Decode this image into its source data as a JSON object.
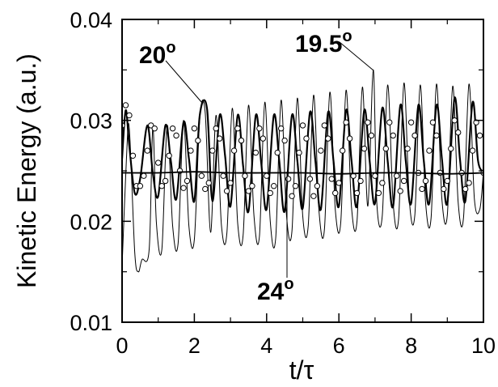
{
  "chart_data": {
    "type": "line",
    "xlabel": "t/τ",
    "ylabel": "Kinetic Energy (a.u.)",
    "xlim": [
      0,
      10
    ],
    "ylim": [
      0.01,
      0.04
    ],
    "x_ticks": [
      "0",
      "2",
      "4",
      "6",
      "8",
      "10"
    ],
    "y_ticks": [
      "0.01",
      "0.02",
      "0.03",
      "0.04"
    ],
    "grid": false,
    "legend": "none",
    "annotations": [
      {
        "label": "20",
        "unit": "o",
        "points_to_x": 2.32,
        "points_to_y": 0.0315
      },
      {
        "label": "19.5",
        "unit": "o",
        "points_to_x": 7.0,
        "points_to_y": 0.0351
      },
      {
        "label": "24",
        "unit": "o",
        "points_to_x": 4.6,
        "points_to_y": 0.0248
      }
    ],
    "series": [
      {
        "style": "line-thin",
        "x": [
          0,
          0.12,
          0.2,
          0.35,
          0.45,
          0.55,
          0.75,
          0.85,
          0.95,
          1.1,
          1.25,
          1.4,
          1.55,
          1.7,
          1.85,
          2.0,
          2.15,
          2.3,
          2.45,
          2.6,
          2.75,
          2.9,
          3.05,
          3.2,
          3.35,
          3.5,
          3.65,
          3.8,
          3.95,
          4.1,
          4.25,
          4.4,
          4.55,
          4.7,
          4.85,
          5.0,
          5.15,
          5.3,
          5.45,
          5.6,
          5.75,
          5.9,
          6.05,
          6.2,
          6.35,
          6.5,
          6.65,
          6.8,
          6.95,
          7.05,
          7.2,
          7.35,
          7.5,
          7.65,
          7.8,
          7.95,
          8.1,
          8.25,
          8.4,
          8.55,
          8.7,
          8.85,
          9.0,
          9.15,
          9.3,
          9.45,
          9.6,
          9.75,
          9.9,
          10
        ],
        "y": [
          0.0155,
          0.0262,
          0.0292,
          0.017,
          0.015,
          0.0162,
          0.0172,
          0.0293,
          0.0198,
          0.0172,
          0.0295,
          0.0195,
          0.0178,
          0.03,
          0.0195,
          0.0182,
          0.0302,
          0.0308,
          0.0189,
          0.0305,
          0.0196,
          0.0188,
          0.0312,
          0.0198,
          0.0186,
          0.0315,
          0.0205,
          0.0185,
          0.0318,
          0.02,
          0.0183,
          0.032,
          0.0206,
          0.019,
          0.0322,
          0.0205,
          0.0195,
          0.0325,
          0.021,
          0.0192,
          0.0328,
          0.0212,
          0.0198,
          0.033,
          0.0214,
          0.02,
          0.0333,
          0.0215,
          0.035,
          0.0218,
          0.0205,
          0.0335,
          0.0218,
          0.0202,
          0.0337,
          0.022,
          0.0206,
          0.0335,
          0.0218,
          0.0203,
          0.0336,
          0.0222,
          0.0206,
          0.0334,
          0.0219,
          0.0204,
          0.0336,
          0.0222,
          0.0212,
          0.025
        ]
      },
      {
        "style": "line-medium",
        "x": [
          0,
          0.1,
          0.2,
          0.35,
          0.5,
          0.7,
          0.85,
          1.0,
          1.2,
          1.35,
          1.5,
          1.7,
          1.85,
          2.0,
          2.15,
          2.35,
          2.5,
          2.7,
          2.85,
          3.0,
          3.2,
          3.35,
          3.5,
          3.7,
          3.85,
          4.0,
          4.2,
          4.35,
          4.5,
          4.7,
          4.85,
          5.0,
          5.2,
          5.35,
          5.5,
          5.7,
          5.85,
          6.0,
          6.2,
          6.35,
          6.5,
          6.7,
          6.85,
          7.0,
          7.2,
          7.35,
          7.5,
          7.7,
          7.85,
          8.0,
          8.2,
          8.35,
          8.5,
          8.7,
          8.85,
          9.0,
          9.2,
          9.35,
          9.5,
          9.7,
          9.85,
          10
        ],
        "y": [
          0.0262,
          0.031,
          0.0275,
          0.0228,
          0.0242,
          0.0295,
          0.0248,
          0.0225,
          0.0295,
          0.026,
          0.0222,
          0.0298,
          0.0262,
          0.022,
          0.0305,
          0.0312,
          0.022,
          0.0305,
          0.0265,
          0.0215,
          0.0305,
          0.0255,
          0.021,
          0.0305,
          0.0258,
          0.0212,
          0.0305,
          0.026,
          0.021,
          0.0305,
          0.026,
          0.0213,
          0.0308,
          0.026,
          0.0212,
          0.0308,
          0.026,
          0.0215,
          0.031,
          0.026,
          0.0215,
          0.031,
          0.026,
          0.0218,
          0.0312,
          0.026,
          0.0215,
          0.0315,
          0.026,
          0.0218,
          0.0315,
          0.026,
          0.0218,
          0.0315,
          0.0262,
          0.0218,
          0.0322,
          0.0262,
          0.022,
          0.0318,
          0.026,
          0.0249
        ]
      },
      {
        "style": "circles",
        "x": [
          0,
          0.1,
          0.2,
          0.3,
          0.4,
          0.5,
          0.6,
          0.7,
          0.8,
          0.9,
          1.0,
          1.1,
          1.2,
          1.3,
          1.4,
          1.5,
          1.6,
          1.7,
          1.8,
          1.9,
          2.0,
          2.1,
          2.2,
          2.3,
          2.4,
          2.5,
          2.6,
          2.7,
          2.8,
          2.9,
          3.0,
          3.1,
          3.2,
          3.3,
          3.4,
          3.5,
          3.6,
          3.7,
          3.8,
          3.9,
          4.0,
          4.1,
          4.2,
          4.3,
          4.4,
          4.5,
          4.6,
          4.7,
          4.8,
          4.9,
          5.0,
          5.1,
          5.2,
          5.3,
          5.4,
          5.5,
          5.6,
          5.7,
          5.8,
          5.9,
          6.0,
          6.1,
          6.2,
          6.3,
          6.4,
          6.5,
          6.6,
          6.7,
          6.8,
          6.9,
          7.0,
          7.1,
          7.2,
          7.3,
          7.4,
          7.5,
          7.6,
          7.7,
          7.8,
          7.9,
          8.0,
          8.1,
          8.2,
          8.3,
          8.4,
          8.5,
          8.6,
          8.7,
          8.8,
          8.9,
          9.0,
          9.1,
          9.2,
          9.3,
          9.4,
          9.5,
          9.6,
          9.7,
          9.8,
          9.9,
          10
        ],
        "y": [
          0.0295,
          0.0315,
          0.0305,
          0.0265,
          0.0235,
          0.0235,
          0.0245,
          0.027,
          0.0295,
          0.0292,
          0.0258,
          0.0235,
          0.024,
          0.0265,
          0.0292,
          0.0285,
          0.025,
          0.0233,
          0.024,
          0.027,
          0.0292,
          0.028,
          0.0245,
          0.0232,
          0.0238,
          0.027,
          0.0292,
          0.0282,
          0.0245,
          0.023,
          0.0238,
          0.027,
          0.0292,
          0.028,
          0.0245,
          0.023,
          0.0235,
          0.0268,
          0.0292,
          0.0282,
          0.0245,
          0.0228,
          0.0235,
          0.0268,
          0.0292,
          0.028,
          0.0242,
          0.0225,
          0.0235,
          0.0268,
          0.0295,
          0.0282,
          0.0242,
          0.0225,
          0.0235,
          0.027,
          0.0295,
          0.0282,
          0.0242,
          0.0228,
          0.0238,
          0.027,
          0.0298,
          0.0282,
          0.0245,
          0.0228,
          0.024,
          0.0272,
          0.0298,
          0.0285,
          0.0245,
          0.0228,
          0.0238,
          0.0272,
          0.0298,
          0.0285,
          0.0245,
          0.023,
          0.024,
          0.0272,
          0.0298,
          0.0285,
          0.0248,
          0.0232,
          0.024,
          0.027,
          0.0298,
          0.0285,
          0.0248,
          0.0232,
          0.024,
          0.0272,
          0.03,
          0.0288,
          0.0248,
          0.0232,
          0.0238,
          0.027,
          0.0298,
          0.0285,
          0.0248
        ]
      },
      {
        "style": "line-flat",
        "x": [
          0,
          1,
          2,
          3,
          4,
          5,
          6,
          7,
          8,
          9,
          10
        ],
        "y": [
          0.0248,
          0.0248,
          0.0249,
          0.0248,
          0.0248,
          0.0248,
          0.0247,
          0.0248,
          0.0248,
          0.0247,
          0.0248
        ]
      }
    ]
  },
  "colors": {
    "axis": "#000000",
    "line": "#000000",
    "marker_fill": "#ffffff"
  }
}
